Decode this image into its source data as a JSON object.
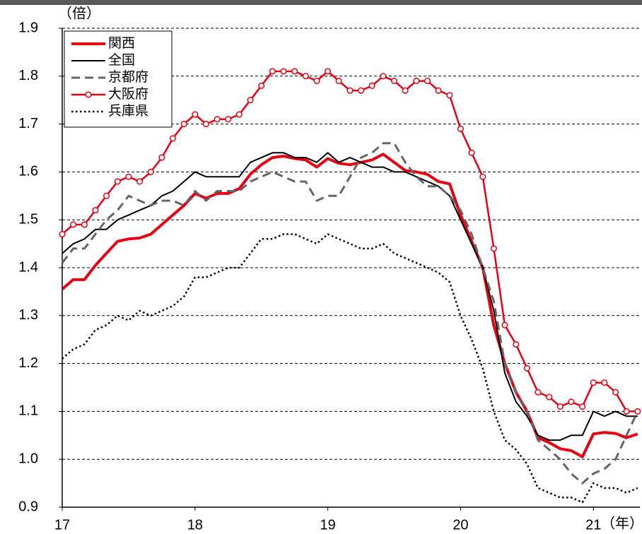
{
  "chart_data": {
    "type": "line",
    "y_label": "（倍）",
    "x_label": "（年）",
    "x": [
      17,
      17.083,
      17.167,
      17.25,
      17.333,
      17.417,
      17.5,
      17.583,
      17.667,
      17.75,
      17.833,
      17.917,
      18,
      18.083,
      18.167,
      18.25,
      18.333,
      18.417,
      18.5,
      18.583,
      18.667,
      18.75,
      18.833,
      18.917,
      19,
      19.083,
      19.167,
      19.25,
      19.333,
      19.417,
      19.5,
      19.583,
      19.667,
      19.75,
      19.833,
      19.917,
      20,
      20.083,
      20.167,
      20.25,
      20.333,
      20.417,
      20.5,
      20.583,
      20.667,
      20.75,
      20.833,
      20.917,
      21,
      21.083,
      21.167,
      21.25,
      21.333
    ],
    "xlim": [
      17,
      21.35
    ],
    "xticks": [
      17,
      18,
      19,
      20,
      21
    ],
    "ylim": [
      0.9,
      1.9
    ],
    "yticks": [
      0.9,
      {
        "value": 1,
        "label": "1.0"
      },
      1.1,
      1.2,
      1.3,
      1.4,
      1.5,
      1.6,
      1.7,
      1.8,
      1.9
    ],
    "grid": true,
    "legend": "top-left",
    "series": [
      {
        "name": "関西",
        "color": "#e60012",
        "width": 4,
        "dash": "solid",
        "values": [
          1.355,
          1.375,
          1.375,
          1.405,
          1.43,
          1.455,
          1.46,
          1.462,
          1.47,
          1.49,
          1.51,
          1.53,
          1.555,
          1.545,
          1.555,
          1.555,
          1.565,
          1.595,
          1.615,
          1.63,
          1.633,
          1.628,
          1.625,
          1.61,
          1.628,
          1.618,
          1.615,
          1.62,
          1.625,
          1.637,
          1.62,
          1.603,
          1.6,
          1.595,
          1.58,
          1.575,
          1.51,
          1.455,
          1.4,
          1.28,
          1.2,
          1.14,
          1.1,
          1.045,
          1.035,
          1.022,
          1.018,
          1.005,
          1.053,
          1.056,
          1.054,
          1.045,
          1.053
        ]
      },
      {
        "name": "全国",
        "color": "#000000",
        "width": 2,
        "dash": "solid",
        "values": [
          1.43,
          1.45,
          1.46,
          1.48,
          1.48,
          1.5,
          1.51,
          1.52,
          1.53,
          1.55,
          1.56,
          1.58,
          1.6,
          1.59,
          1.59,
          1.59,
          1.59,
          1.62,
          1.63,
          1.64,
          1.64,
          1.63,
          1.63,
          1.62,
          1.64,
          1.62,
          1.63,
          1.62,
          1.61,
          1.61,
          1.6,
          1.6,
          1.59,
          1.58,
          1.57,
          1.55,
          1.5,
          1.45,
          1.4,
          1.31,
          1.18,
          1.12,
          1.09,
          1.05,
          1.04,
          1.04,
          1.05,
          1.05,
          1.1,
          1.09,
          1.1,
          1.09,
          1.09
        ]
      },
      {
        "name": "京都府",
        "color": "#666666",
        "width": 3,
        "dash": "dashed",
        "values": [
          1.41,
          1.44,
          1.44,
          1.47,
          1.5,
          1.52,
          1.55,
          1.54,
          1.53,
          1.54,
          1.54,
          1.53,
          1.56,
          1.54,
          1.56,
          1.56,
          1.56,
          1.58,
          1.59,
          1.6,
          1.59,
          1.58,
          1.58,
          1.54,
          1.55,
          1.55,
          1.59,
          1.63,
          1.64,
          1.66,
          1.66,
          1.62,
          1.59,
          1.57,
          1.57,
          1.55,
          1.52,
          1.47,
          1.4,
          1.33,
          1.2,
          1.14,
          1.1,
          1.04,
          1.02,
          1.0,
          0.97,
          0.95,
          0.97,
          0.98,
          1.0,
          1.05,
          1.1
        ]
      },
      {
        "name": "大阪府",
        "color": "#e60012",
        "width": 2.5,
        "dash": "solid",
        "marker": "circle",
        "values": [
          1.47,
          1.49,
          1.49,
          1.52,
          1.55,
          1.58,
          1.59,
          1.58,
          1.6,
          1.63,
          1.67,
          1.7,
          1.72,
          1.7,
          1.71,
          1.71,
          1.72,
          1.75,
          1.78,
          1.81,
          1.81,
          1.81,
          1.8,
          1.79,
          1.81,
          1.79,
          1.77,
          1.77,
          1.78,
          1.8,
          1.79,
          1.77,
          1.79,
          1.79,
          1.77,
          1.76,
          1.69,
          1.64,
          1.59,
          1.44,
          1.28,
          1.24,
          1.19,
          1.14,
          1.13,
          1.11,
          1.12,
          1.11,
          1.16,
          1.16,
          1.14,
          1.1,
          1.1
        ]
      },
      {
        "name": "兵庫県",
        "color": "#000000",
        "width": 2.5,
        "dash": "dotted",
        "values": [
          1.21,
          1.23,
          1.24,
          1.27,
          1.28,
          1.3,
          1.29,
          1.31,
          1.3,
          1.31,
          1.32,
          1.34,
          1.38,
          1.38,
          1.39,
          1.4,
          1.4,
          1.43,
          1.46,
          1.46,
          1.47,
          1.47,
          1.46,
          1.45,
          1.47,
          1.46,
          1.45,
          1.44,
          1.44,
          1.45,
          1.43,
          1.42,
          1.41,
          1.4,
          1.39,
          1.37,
          1.3,
          1.25,
          1.19,
          1.1,
          1.04,
          1.02,
          0.99,
          0.94,
          0.93,
          0.92,
          0.92,
          0.91,
          0.95,
          0.94,
          0.94,
          0.93,
          0.94
        ]
      }
    ]
  }
}
